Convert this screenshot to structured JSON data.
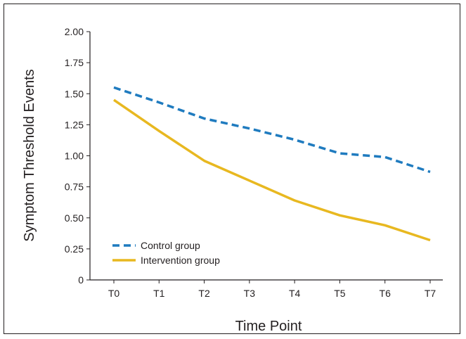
{
  "chart_data": {
    "type": "line",
    "title": "",
    "xlabel": "Time Point",
    "ylabel": "Symptom Threshold Events",
    "categories": [
      "T0",
      "T1",
      "T2",
      "T3",
      "T4",
      "T5",
      "T6",
      "T7"
    ],
    "ylim": [
      0,
      2.0
    ],
    "yticks": [
      0,
      0.25,
      0.5,
      0.75,
      1.0,
      1.25,
      1.5,
      1.75,
      2.0
    ],
    "ytick_labels": [
      "0",
      "0.25",
      "0.50",
      "0.75",
      "1.00",
      "1.25",
      "1.50",
      "1.75",
      "2.00"
    ],
    "grid": false,
    "legend_position": "bottom-left",
    "series": [
      {
        "name": "Control group",
        "values": [
          1.55,
          1.43,
          1.3,
          1.22,
          1.13,
          1.02,
          0.99,
          0.87
        ],
        "color": "#1f7bbf",
        "style": "dashed"
      },
      {
        "name": "Intervention group",
        "values": [
          1.45,
          1.2,
          0.96,
          0.8,
          0.64,
          0.52,
          0.44,
          0.32
        ],
        "color": "#e8b820",
        "style": "solid"
      }
    ]
  }
}
